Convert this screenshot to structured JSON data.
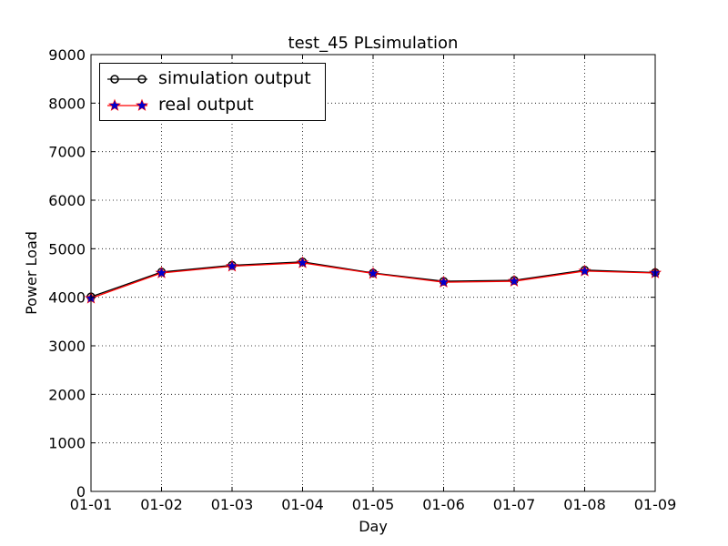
{
  "chart_data": {
    "type": "line",
    "title": "test_45 PLsimulation",
    "xlabel": "Day",
    "ylabel": "Power Load",
    "categories": [
      "01-01",
      "01-02",
      "01-03",
      "01-04",
      "01-05",
      "01-06",
      "01-07",
      "01-08",
      "01-09"
    ],
    "ylim": [
      0,
      9000
    ],
    "yticks": [
      0,
      1000,
      2000,
      3000,
      4000,
      5000,
      6000,
      7000,
      8000,
      9000
    ],
    "grid": true,
    "legend_position": "top-left",
    "series": [
      {
        "name": "simulation output",
        "values": [
          4010,
          4520,
          4660,
          4730,
          4500,
          4330,
          4350,
          4560,
          4510
        ],
        "color": "#000000",
        "marker": "circle"
      },
      {
        "name": "real output",
        "values": [
          3980,
          4500,
          4640,
          4710,
          4490,
          4310,
          4330,
          4540,
          4500
        ],
        "color": "#ff0000",
        "marker_color": "#0000cc",
        "marker": "star"
      }
    ]
  }
}
